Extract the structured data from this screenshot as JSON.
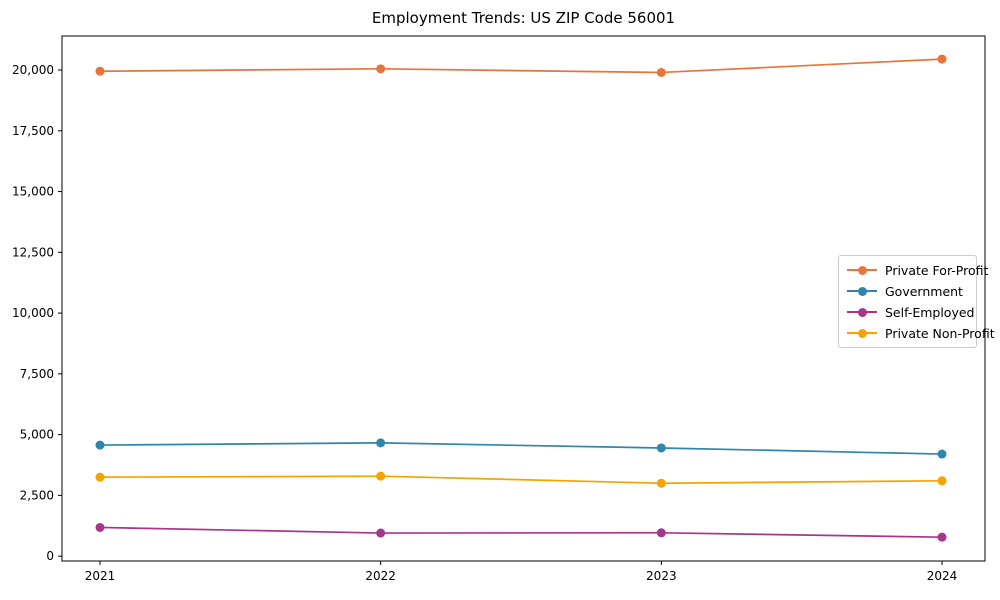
{
  "chart_data": {
    "type": "line",
    "title": "Employment Trends: US ZIP Code 56001",
    "categories": [
      "2021",
      "2022",
      "2023",
      "2024"
    ],
    "series": [
      {
        "name": "Private For-Profit",
        "color": "#E8743B",
        "values": [
          19950,
          20050,
          19900,
          20450
        ]
      },
      {
        "name": "Government",
        "color": "#2E86AB",
        "values": [
          4570,
          4660,
          4450,
          4200
        ]
      },
      {
        "name": "Self-Employed",
        "color": "#A8358C",
        "values": [
          1180,
          950,
          960,
          780
        ]
      },
      {
        "name": "Private Non-Profit",
        "color": "#F5A300",
        "values": [
          3250,
          3290,
          3000,
          3100
        ]
      }
    ],
    "xlabel": "",
    "ylabel": "",
    "ylim": [
      -200,
      21400
    ],
    "y_ticks": [
      0,
      2500,
      5000,
      7500,
      10000,
      12500,
      15000,
      17500,
      20000
    ],
    "y_tick_labels": [
      "0",
      "2,500",
      "5,000",
      "7,500",
      "10,000",
      "12,500",
      "15,000",
      "17,500",
      "20,000"
    ],
    "x_tick_labels": [
      "2021",
      "2022",
      "2023",
      "2024"
    ],
    "grid": false,
    "legend_position": "right-middle",
    "axes_color": "#000000",
    "background_color": "#ffffff"
  }
}
